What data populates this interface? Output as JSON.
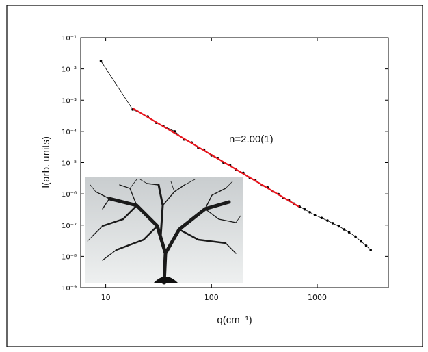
{
  "chart_data": {
    "type": "line",
    "xlabel": "q(cm⁻¹)",
    "ylabel": "I(arb. units)",
    "annotation": "n=2.00(1)",
    "log_x": true,
    "log_y": true,
    "xlim": [
      5.8,
      4700
    ],
    "ylim": [
      1e-09,
      0.1
    ],
    "xticks": [
      10,
      100,
      1000
    ],
    "yticks": [
      {
        "value": 1e-09,
        "label": "10⁻⁹"
      },
      {
        "value": 1e-08,
        "label": "10⁻⁸"
      },
      {
        "value": 1e-07,
        "label": "10⁻⁷"
      },
      {
        "value": 1e-06,
        "label": "10⁻⁶"
      },
      {
        "value": 1e-05,
        "label": "10⁻⁵"
      },
      {
        "value": 0.0001,
        "label": "10⁻⁴"
      },
      {
        "value": 0.001,
        "label": "10⁻³"
      },
      {
        "value": 0.01,
        "label": "10⁻²"
      },
      {
        "value": 0.1,
        "label": "10⁻¹"
      }
    ],
    "series": [
      {
        "color": "#000000",
        "markers": true,
        "x": [
          9,
          18,
          25,
          30,
          35,
          45,
          55,
          65,
          75,
          85,
          100,
          115,
          130,
          150,
          170,
          200,
          230,
          260,
          300,
          340,
          380,
          430,
          480,
          540,
          600,
          680,
          760,
          850,
          950,
          1100,
          1250,
          1400,
          1600,
          1800,
          2000,
          2300,
          2600,
          2900,
          3200
        ],
        "values": [
          0.018,
          0.0005,
          0.0003,
          0.00019,
          0.00015,
          0.0001,
          5.5e-05,
          4.4e-05,
          3e-05,
          2.6e-05,
          1.7e-05,
          1.4e-05,
          1e-05,
          8.2e-06,
          6e-06,
          4.7e-06,
          3.3e-06,
          2.7e-06,
          1.9e-06,
          1.6e-06,
          1.2e-06,
          9.8e-07,
          7.5e-07,
          6.2e-07,
          4.9e-07,
          3.9e-07,
          3.2e-07,
          2.6e-07,
          2.1e-07,
          1.7e-07,
          1.4e-07,
          1.15e-07,
          9.2e-08,
          7.3e-08,
          5.9e-08,
          4.3e-08,
          3e-08,
          2.2e-08,
          1.6e-08
        ]
      },
      {
        "color": "#e8141c",
        "markers": false,
        "x": [
          18,
          680
        ],
        "values": [
          0.00055,
          3.8e-07
        ]
      }
    ]
  }
}
